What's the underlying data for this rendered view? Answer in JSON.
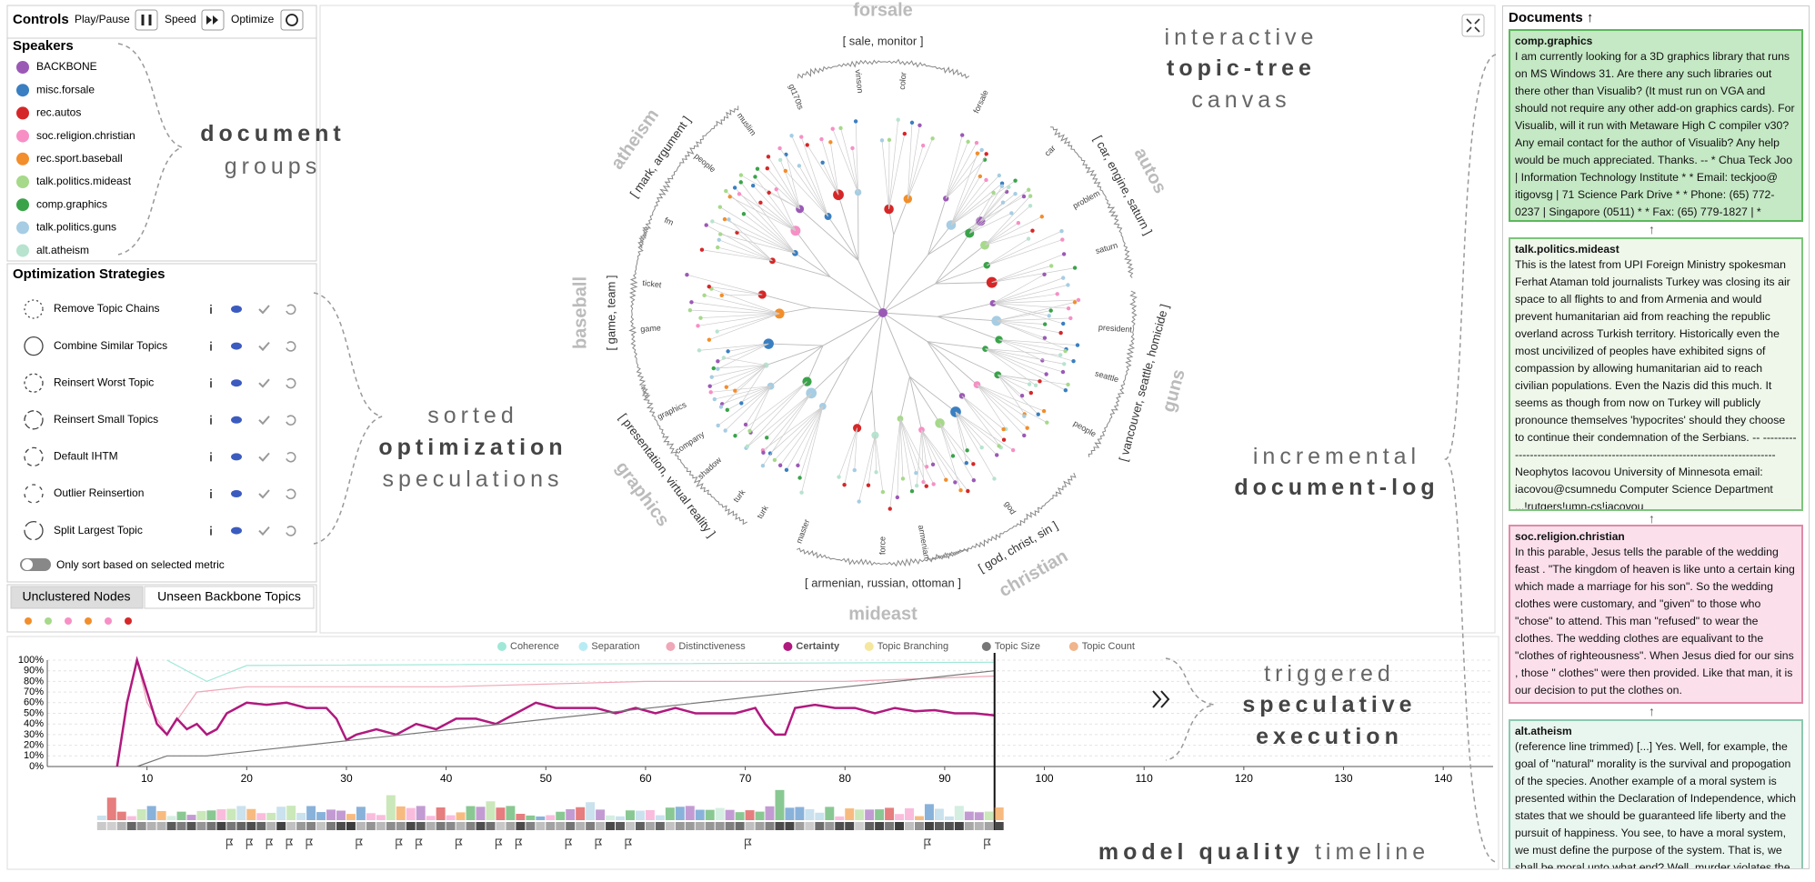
{
  "controls": {
    "title": "Controls",
    "play_pause": "Play/Pause",
    "speed": "Speed",
    "optimize": "Optimize"
  },
  "speakers": {
    "title": "Speakers",
    "items": [
      {
        "name": "BACKBONE",
        "color": "#9b59b6"
      },
      {
        "name": "misc.forsale",
        "color": "#3a7fc1"
      },
      {
        "name": "rec.autos",
        "color": "#d62728"
      },
      {
        "name": "soc.religion.christian",
        "color": "#f78fc5"
      },
      {
        "name": "rec.sport.baseball",
        "color": "#f28e2b"
      },
      {
        "name": "talk.politics.mideast",
        "color": "#a6d98a"
      },
      {
        "name": "comp.graphics",
        "color": "#3aa34a"
      },
      {
        "name": "talk.politics.guns",
        "color": "#a6cde3"
      },
      {
        "name": "alt.atheism",
        "color": "#b7e3cf"
      }
    ]
  },
  "strategies": {
    "title": "Optimization Strategies",
    "items": [
      "Remove Topic Chains",
      "Combine Similar Topics",
      "Reinsert Worst Topic",
      "Reinsert Small Topics",
      "Default IHTM",
      "Outlier Reinsertion",
      "Split Largest Topic"
    ],
    "toggle": "Only sort based on selected metric"
  },
  "tabs": [
    "Unclustered Nodes",
    "Unseen Backbone Topics"
  ],
  "unclustered_colors": [
    "#f28e2b",
    "#a6d98a",
    "#f78fc5",
    "#f28e2b",
    "#f78fc5",
    "#d62728"
  ],
  "canvas": {
    "topics": [
      {
        "name": "forsale",
        "keywords": "[ sale, monitor ]"
      },
      {
        "name": "autos",
        "keywords": "[ car, engine, saturn ]"
      },
      {
        "name": "guns",
        "keywords": "[ vancouver, seattle, homicide ]"
      },
      {
        "name": "christian",
        "keywords": "[ god, christ, sin ]"
      },
      {
        "name": "mideast",
        "keywords": "[ armenian, russian, ottoman ]"
      },
      {
        "name": "graphics",
        "keywords": "[ presentation, virtual reality ]"
      },
      {
        "name": "baseball",
        "keywords": "[ game, team ]"
      },
      {
        "name": "atheism",
        "keywords": "[ mark, argument ]"
      }
    ],
    "leaf_labels": [
      "gt170ts",
      "vinson",
      "color",
      "forsale",
      "muslim",
      "people",
      "car",
      "problem",
      "saturn",
      "president",
      "seattle",
      "people",
      "god",
      "armenian",
      "force",
      "master",
      "turk",
      "turk",
      "shadow",
      "company",
      "graphics",
      "ticket",
      "game",
      "fm"
    ]
  },
  "timeline": {
    "xlim": [
      0,
      145
    ],
    "xticks": [
      10,
      20,
      30,
      40,
      50,
      60,
      70,
      80,
      90,
      100,
      110,
      120,
      130,
      140
    ],
    "ylim": [
      0,
      100
    ],
    "yticks": [
      {
        "value": 0,
        "label": "0%"
      },
      {
        "value": 10,
        "label": "10%"
      },
      {
        "value": 20,
        "label": "20%"
      },
      {
        "value": 30,
        "label": "30%"
      },
      {
        "value": 40,
        "label": "40%"
      },
      {
        "value": 50,
        "label": "50%"
      },
      {
        "value": 60,
        "label": "60%"
      },
      {
        "value": 70,
        "label": "70%"
      },
      {
        "value": 80,
        "label": "80%"
      },
      {
        "value": 90,
        "label": "90%"
      },
      {
        "value": 100,
        "label": "100%"
      }
    ],
    "current": 95,
    "series": [
      {
        "name": "Coherence",
        "color": "#9fe8d8",
        "x": [
          12,
          16,
          20,
          95
        ],
        "values": [
          100,
          80,
          95,
          98
        ]
      },
      {
        "name": "Separation",
        "color": "#b8ecf4"
      },
      {
        "name": "Distinctiveness",
        "color": "#f0a7b8",
        "x": [
          9,
          10,
          12,
          15,
          20,
          40,
          60,
          80,
          95
        ],
        "values": [
          100,
          60,
          30,
          70,
          75,
          75,
          80,
          80,
          85
        ]
      },
      {
        "name": "Certainty",
        "color": "#b0197e",
        "x": [
          7,
          8,
          9,
          10,
          11,
          12,
          13,
          14,
          15,
          16,
          17,
          18,
          20,
          22,
          24,
          26,
          28,
          29,
          30,
          31,
          33,
          35,
          37,
          39,
          41,
          43,
          45,
          47,
          49,
          51,
          53,
          55,
          57,
          59,
          61,
          63,
          65,
          67,
          69,
          71,
          72,
          73,
          74,
          75,
          77,
          79,
          81,
          83,
          85,
          87,
          89,
          91,
          93,
          95
        ],
        "values": [
          0,
          60,
          100,
          70,
          40,
          30,
          45,
          35,
          40,
          30,
          35,
          50,
          60,
          58,
          60,
          55,
          55,
          45,
          25,
          30,
          35,
          30,
          40,
          35,
          45,
          45,
          40,
          50,
          60,
          55,
          55,
          55,
          50,
          55,
          50,
          55,
          50,
          50,
          50,
          55,
          40,
          30,
          30,
          55,
          58,
          55,
          55,
          50,
          55,
          52,
          53,
          50,
          50,
          48
        ]
      },
      {
        "name": "Topic Branching",
        "color": "#f5e79e"
      },
      {
        "name": "Topic Size",
        "color": "#777777",
        "x": [
          9,
          12,
          16,
          95
        ],
        "values": [
          0,
          10,
          10,
          90
        ]
      },
      {
        "name": "Topic Count",
        "color": "#f0b58a"
      }
    ]
  },
  "documents": {
    "title": "Documents",
    "items": [
      {
        "group": "comp.graphics",
        "text": "I am currently looking for a 3D graphics library that runs on MS Windows 31. Are there any such libraries out there other than Visualib? (It must run on VGA and should not require any other add-on graphics cards). For Visualib, will it run with Metaware High C compiler v30? Any email contact for the author of Visualib? Any help would be much appreciated. Thanks. -- * Chua Teck Joo | Information Technology Institute * * Email: teckjoo@ itigovsg | 71 Science Park Drive * * Phone: (65) 772-0237 | Singapore (0511) * * Fax: (65) 779-1827 | *"
      },
      {
        "group": "talk.politics.mideast",
        "text": "This is the latest from UPI Foreign Ministry spokesman Ferhat Ataman told journalists Turkey was closing its air space to all flights to and from Armenia and would prevent humanitarian aid from reaching the republic overland across Turkish territory. Historically even the most uncivilized of peoples have exhibited signs of compassion by allowing humanitarian aid to reach civilian populations. Even the Nazis did this much. It seems as though from now on Turkey will publicly pronounce themselves 'hypocrites' should they choose to continue their condemnation of the Serbians. -- ------------------------------------------------------------------------------- Neophytos Iacovou University of Minnesota email: iacovou@csumnedu Computer Science Department ...!rutgers!umn-cs!iacovou"
      },
      {
        "group": "soc.religion.christian",
        "text": "In this parable, Jesus tells the parable of the wedding feast . \"The kingdom of heaven is like unto a certain king which made a marriage for his son\". So the wedding clothes were customary, and \"given\" to those who \"chose\" to attend. This man \"refused\" to wear the clothes. The wedding clothes are equalivant to the \"clothes of righteousness\". When Jesus died for our sins , those \" clothes\" were then provided. Like that man, it is our decision to put the clothes on."
      },
      {
        "group": "alt.atheism",
        "text": "(reference line trimmed) [...] Yes. Well, for example, the goal of \"natural\" morality is the survival and propogation of the species. Another example of a moral system is presented within the Declaration of Independence, which states that we should be guaranteed life liberty and the pursuit of happiness. You see, to have a moral system, we must define the purpose of the system. That is, we shall be moral unto what end? Well, murder violates the golden rule."
      }
    ]
  },
  "annotations": [
    {
      "lines": [
        [
          {
            "text": "document",
            "bold": true
          }
        ],
        [
          {
            "text": "groups"
          }
        ]
      ]
    },
    {
      "lines": [
        [
          {
            "text": "sorted"
          }
        ],
        [
          {
            "text": "optimization",
            "bold": true
          }
        ],
        [
          {
            "text": "speculations"
          }
        ]
      ]
    },
    {
      "lines": [
        [
          {
            "text": "interactive"
          }
        ],
        [
          {
            "text": "topic-tree",
            "bold": true
          }
        ],
        [
          {
            "text": "canvas"
          }
        ]
      ]
    },
    {
      "lines": [
        [
          {
            "text": "incremental"
          }
        ],
        [
          {
            "text": "document-log",
            "bold": true
          }
        ]
      ]
    },
    {
      "lines": [
        [
          {
            "text": "triggered"
          }
        ],
        [
          {
            "text": "speculative",
            "bold": true
          }
        ],
        [
          {
            "text": "execution",
            "bold": true
          }
        ]
      ]
    },
    {
      "lines": [
        [
          {
            "text": "model quality",
            "bold": true
          },
          {
            "text": " timeline"
          }
        ]
      ]
    }
  ]
}
